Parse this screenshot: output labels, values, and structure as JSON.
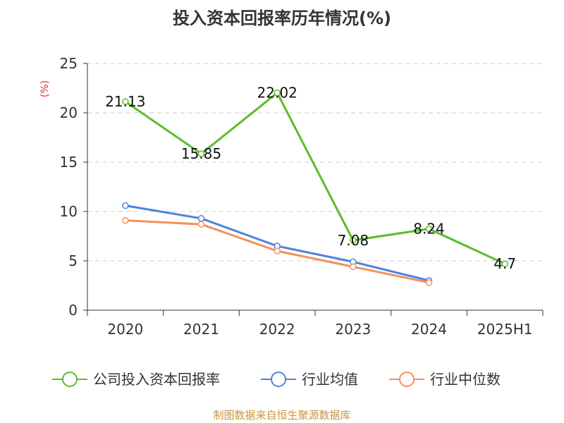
{
  "chart_data": {
    "type": "line",
    "title": "投入资本回报率历年情况(%)",
    "ylabel": "(%)",
    "categories": [
      "2020",
      "2021",
      "2022",
      "2023",
      "2024",
      "2025H1"
    ],
    "ylim": [
      0,
      25
    ],
    "yticks": [
      0,
      5,
      10,
      15,
      20,
      25
    ],
    "grid": true,
    "legend_position": "bottom",
    "series": [
      {
        "name": "公司投入资本回报率",
        "color": "#5bbd2a",
        "values": [
          21.13,
          15.85,
          22.02,
          7.08,
          8.24,
          4.7
        ],
        "labels": [
          "21.13",
          "15.85",
          "22.02",
          "7.08",
          "8.24",
          "4.7"
        ]
      },
      {
        "name": "行业均值",
        "color": "#4f82d9",
        "values": [
          10.6,
          9.3,
          6.5,
          4.9,
          3.0,
          null
        ]
      },
      {
        "name": "行业中位数",
        "color": "#f4905a",
        "values": [
          9.1,
          8.7,
          6.0,
          4.4,
          2.8,
          null
        ]
      }
    ],
    "source": "制图数据来自恒生聚源数据库"
  }
}
